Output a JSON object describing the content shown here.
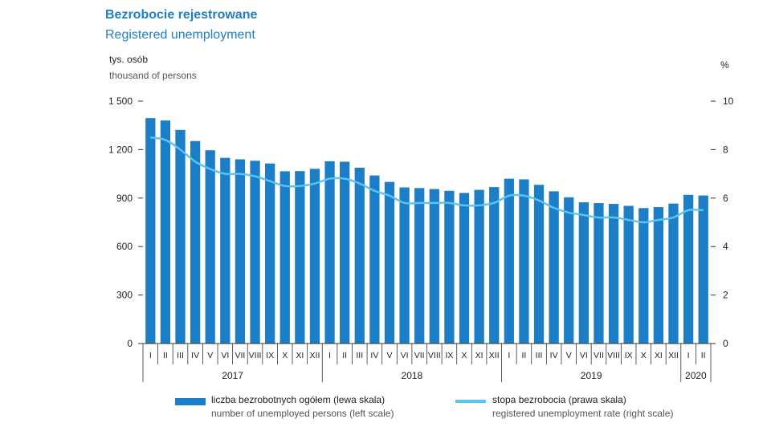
{
  "title": "Bezrobocie rejestrowane",
  "subtitle": "Registered unemployment",
  "unit_left": "tys. osób",
  "unit_left_en": "thousand of persons",
  "unit_right": "%",
  "legend": {
    "bars_pl": "liczba bezrobotnych ogółem (lewa skala)",
    "bars_en": "number of unemployed persons (left scale)",
    "line_pl": "stopa bezrobocia (prawa skala)",
    "line_en": "registered unemployment rate (right scale)"
  },
  "colors": {
    "bars": "#1b7ec6",
    "line": "#5cc4ef",
    "title": "#1f7fc4"
  },
  "chart_data": {
    "type": "bar",
    "categories": [
      "I",
      "II",
      "III",
      "IV",
      "V",
      "VI",
      "VII",
      "VIII",
      "IX",
      "X",
      "XI",
      "XII",
      "I",
      "II",
      "III",
      "IV",
      "V",
      "VI",
      "VII",
      "VIII",
      "IX",
      "X",
      "XI",
      "XII",
      "I",
      "II",
      "III",
      "IV",
      "V",
      "VI",
      "VII",
      "VIII",
      "IX",
      "X",
      "XI",
      "XII",
      "I",
      "II"
    ],
    "years": [
      {
        "label": "2017",
        "months": 12
      },
      {
        "label": "2018",
        "months": 12
      },
      {
        "label": "2019",
        "months": 12
      },
      {
        "label": "2020",
        "months": 2
      }
    ],
    "series": [
      {
        "name": "liczba bezrobotnych ogółem (lewa skala)",
        "axis": "left",
        "values": [
          1395,
          1380,
          1322,
          1253,
          1196,
          1149,
          1140,
          1131,
          1114,
          1066,
          1067,
          1081,
          1128,
          1125,
          1088,
          1040,
          1000,
          966,
          962,
          956,
          945,
          932,
          951,
          968,
          1020,
          1016,
          982,
          942,
          905,
          874,
          869,
          864,
          852,
          838,
          844,
          866,
          920,
          916
        ]
      },
      {
        "name": "stopa bezrobocia (prawa skala)",
        "axis": "right",
        "values": [
          8.5,
          8.4,
          8.0,
          7.5,
          7.2,
          7.0,
          7.0,
          6.9,
          6.7,
          6.5,
          6.5,
          6.6,
          6.8,
          6.8,
          6.6,
          6.3,
          6.1,
          5.8,
          5.8,
          5.8,
          5.8,
          5.7,
          5.7,
          5.8,
          6.1,
          6.1,
          5.9,
          5.6,
          5.4,
          5.3,
          5.2,
          5.2,
          5.1,
          5.0,
          5.1,
          5.2,
          5.5,
          5.5
        ]
      }
    ],
    "y_left": {
      "ylim": [
        0,
        1500
      ],
      "ticks": [
        0,
        300,
        600,
        900,
        1200,
        1500
      ],
      "tick_labels": [
        "0",
        "300",
        "600",
        "900",
        "1 200",
        "1 500"
      ]
    },
    "y_right": {
      "ylim": [
        0,
        10
      ],
      "ticks": [
        0,
        2,
        4,
        6,
        8,
        10
      ],
      "tick_labels": [
        "0",
        "2",
        "4",
        "6",
        "8",
        "10"
      ]
    },
    "grid": false,
    "legend_position": "bottom"
  }
}
